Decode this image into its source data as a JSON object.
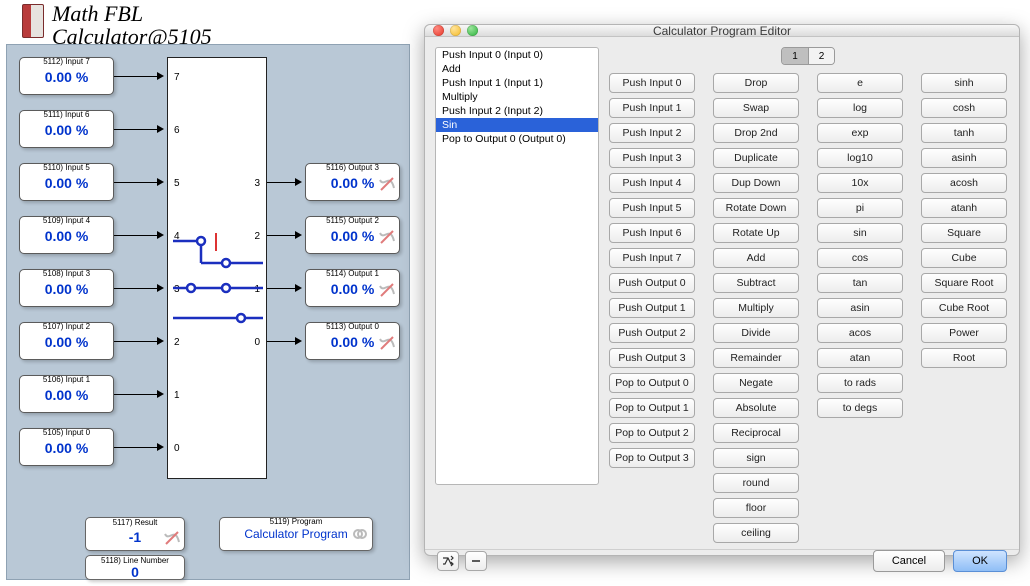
{
  "title": {
    "line1": "Math FBL",
    "line2": "Calculator@5105"
  },
  "inputs": [
    {
      "label": "5112) Input 7",
      "value": "0.00 %",
      "pin": "7"
    },
    {
      "label": "5111) Input 6",
      "value": "0.00 %",
      "pin": "6"
    },
    {
      "label": "5110) Input 5",
      "value": "0.00 %",
      "pin": "5"
    },
    {
      "label": "5109) Input 4",
      "value": "0.00 %",
      "pin": "4"
    },
    {
      "label": "5108) Input 3",
      "value": "0.00 %",
      "pin": "3"
    },
    {
      "label": "5107) Input 2",
      "value": "0.00 %",
      "pin": "2"
    },
    {
      "label": "5106) Input 1",
      "value": "0.00 %",
      "pin": "1"
    },
    {
      "label": "5105) Input 0",
      "value": "0.00 %",
      "pin": "0"
    }
  ],
  "outputs": [
    {
      "label": "5116) Output 3",
      "value": "0.00 %",
      "pin": "3"
    },
    {
      "label": "5115) Output 2",
      "value": "0.00 %",
      "pin": "2"
    },
    {
      "label": "5114) Output 1",
      "value": "0.00 %",
      "pin": "1"
    },
    {
      "label": "5113) Output 0",
      "value": "0.00 %",
      "pin": "0"
    }
  ],
  "result": {
    "label": "5117) Result",
    "value": "-1"
  },
  "lineNum": {
    "label": "5118) Line Number",
    "value": "0"
  },
  "program": {
    "label": "5119) Program",
    "link": "Calculator Program"
  },
  "dialog": {
    "title": "Calculator Program Editor",
    "programList": [
      "Push Input 0 (Input 0)",
      "Add",
      "Push Input 1 (Input 1)",
      "Multiply",
      "Push Input 2 (Input 2)",
      "Sin",
      "Pop to Output 0 (Output 0)"
    ],
    "selectedIndex": 5,
    "tabs": [
      "1",
      "2"
    ],
    "activeTab": 0,
    "columns": [
      [
        "Push Input 0",
        "Push Input 1",
        "Push Input 2",
        "Push Input 3",
        "Push Input 4",
        "Push Input 5",
        "Push Input 6",
        "Push Input 7",
        "Push Output 0",
        "Push Output 1",
        "Push Output 2",
        "Push Output 3",
        "Pop to Output 0",
        "Pop to Output 1",
        "Pop to Output 2",
        "Pop to Output 3"
      ],
      [
        "Drop",
        "Swap",
        "Drop 2nd",
        "Duplicate",
        "Dup Down",
        "Rotate Down",
        "Rotate Up",
        "Add",
        "Subtract",
        "Multiply",
        "Divide",
        "Remainder",
        "Negate",
        "Absolute",
        "Reciprocal",
        "sign",
        "round",
        "floor",
        "ceiling"
      ],
      [
        "e",
        "log",
        "exp",
        "log10",
        "10x",
        "pi",
        "sin",
        "cos",
        "tan",
        "asin",
        "acos",
        "atan",
        "to rads",
        "to degs"
      ],
      [
        "sinh",
        "cosh",
        "tanh",
        "asinh",
        "acosh",
        "atanh",
        "Square",
        "Cube",
        "Square Root",
        "Cube Root",
        "Power",
        "Root"
      ]
    ],
    "buttons": {
      "cancel": "Cancel",
      "ok": "OK"
    }
  },
  "colors": {
    "panel_bg": "#b9c8d6",
    "value_color": "#0033cc",
    "dialog_bg": "#ececec",
    "select_bg": "#2a62d9"
  }
}
